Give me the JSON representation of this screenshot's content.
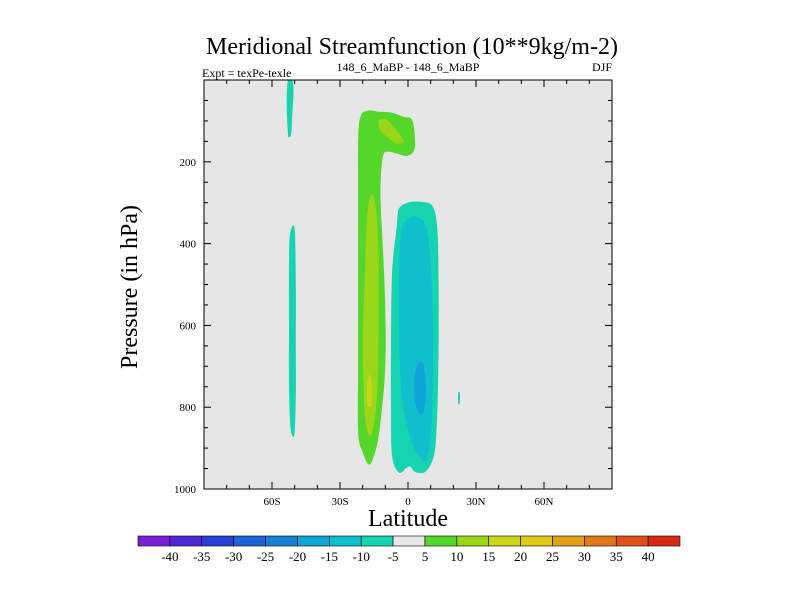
{
  "chart_data": {
    "type": "contour",
    "title": "Meridional Streamfunction (10**9kg/m-2)",
    "subtitle_left": "Expt = texPe-texle",
    "subtitle_center": "148_6_MaBP - 148_6_MaBP",
    "subtitle_right": "DJF",
    "xlabel": "Latitude",
    "ylabel": "Pressure (in hPa)",
    "xlim": [
      -90,
      90
    ],
    "ylim": [
      1000,
      0
    ],
    "x_ticks": [
      {
        "value": -60,
        "label": "60S"
      },
      {
        "value": -30,
        "label": "30S"
      },
      {
        "value": 0,
        "label": "0"
      },
      {
        "value": 30,
        "label": "30N"
      },
      {
        "value": 60,
        "label": "60N"
      }
    ],
    "y_ticks": [
      {
        "value": 200,
        "label": "200"
      },
      {
        "value": 400,
        "label": "400"
      },
      {
        "value": 600,
        "label": "600"
      },
      {
        "value": 800,
        "label": "800"
      },
      {
        "value": 1000,
        "label": "1000"
      }
    ],
    "background_color": "#e6e6e6",
    "colorbar": {
      "levels": [
        "-40",
        "-35",
        "-30",
        "-25",
        "-20",
        "-15",
        "-10",
        "-5",
        "5",
        "10",
        "15",
        "20",
        "25",
        "30",
        "35",
        "40"
      ],
      "colors": [
        "#7b1fd6",
        "#4d28d4",
        "#2a3fd6",
        "#1d62d6",
        "#1481d6",
        "#0fa3d6",
        "#0fc0cc",
        "#16d4b0",
        "#e6e6e6",
        "#55d62a",
        "#9ad61a",
        "#c8d61a",
        "#e0c81a",
        "#e0a01a",
        "#e0781a",
        "#e0501a",
        "#d62a14"
      ]
    },
    "regions": [
      {
        "name": "high-lat-south-upper",
        "color": "#16d4b0",
        "points": [
          [
            -53,
            0
          ],
          [
            -51,
            0
          ],
          [
            -50.5,
            30
          ],
          [
            -51,
            80
          ],
          [
            -51.5,
            130
          ],
          [
            -52.5,
            140
          ],
          [
            -53,
            130
          ],
          [
            -53.5,
            60
          ]
        ]
      },
      {
        "name": "high-lat-south-lower",
        "color": "#16d4b0",
        "points": [
          [
            -52,
            375
          ],
          [
            -50,
            365
          ],
          [
            -49.5,
            500
          ],
          [
            -49.5,
            650
          ],
          [
            -49.5,
            770
          ],
          [
            -50,
            860
          ],
          [
            -51,
            870
          ],
          [
            -52,
            840
          ],
          [
            -52.5,
            750
          ],
          [
            -52.5,
            600
          ],
          [
            -52.5,
            450
          ]
        ]
      },
      {
        "name": "southern-cell-10",
        "color": "#55d62a",
        "points": [
          [
            -21,
            90
          ],
          [
            -18,
            75
          ],
          [
            -12,
            78
          ],
          [
            -7,
            80
          ],
          [
            -2,
            90
          ],
          [
            2,
            100
          ],
          [
            3,
            165
          ],
          [
            0,
            185
          ],
          [
            -5,
            180
          ],
          [
            -9,
            175
          ],
          [
            -11,
            185
          ],
          [
            -12,
            240
          ],
          [
            -12,
            310
          ],
          [
            -11,
            420
          ],
          [
            -10,
            560
          ],
          [
            -10,
            700
          ],
          [
            -12,
            830
          ],
          [
            -14,
            900
          ],
          [
            -17,
            940
          ],
          [
            -20,
            910
          ],
          [
            -22,
            860
          ],
          [
            -22,
            700
          ],
          [
            -22,
            500
          ],
          [
            -22,
            300
          ],
          [
            -22,
            150
          ]
        ]
      },
      {
        "name": "southern-cell-15-upper",
        "color": "#9ad61a",
        "points": [
          [
            -13,
            100
          ],
          [
            -10,
            95
          ],
          [
            -7,
            110
          ],
          [
            -4,
            130
          ],
          [
            -2,
            150
          ],
          [
            -5,
            155
          ],
          [
            -9,
            140
          ],
          [
            -12,
            125
          ]
        ]
      },
      {
        "name": "southern-cell-15-lower",
        "color": "#9ad61a",
        "points": [
          [
            -16,
            280
          ],
          [
            -14,
            320
          ],
          [
            -13,
            450
          ],
          [
            -13,
            620
          ],
          [
            -13.5,
            760
          ],
          [
            -15,
            840
          ],
          [
            -17,
            870
          ],
          [
            -19,
            820
          ],
          [
            -20,
            650
          ],
          [
            -19,
            470
          ],
          [
            -18,
            330
          ]
        ]
      },
      {
        "name": "southern-cell-20",
        "color": "#c8d61a",
        "points": [
          [
            -17,
            720
          ],
          [
            -16,
            745
          ],
          [
            -16,
            790
          ],
          [
            -17,
            800
          ],
          [
            -18,
            790
          ],
          [
            -18,
            740
          ]
        ]
      },
      {
        "name": "northern-cell-minus5",
        "color": "#16d4b0",
        "points": [
          [
            -4,
            315
          ],
          [
            0,
            300
          ],
          [
            6,
            298
          ],
          [
            11,
            310
          ],
          [
            13,
            370
          ],
          [
            13.5,
            500
          ],
          [
            13.5,
            660
          ],
          [
            13,
            800
          ],
          [
            12,
            900
          ],
          [
            10,
            940
          ],
          [
            7,
            960
          ],
          [
            3,
            958
          ],
          [
            1,
            945
          ],
          [
            -1,
            950
          ],
          [
            -4,
            960
          ],
          [
            -7,
            920
          ],
          [
            -7.5,
            800
          ],
          [
            -7.5,
            650
          ],
          [
            -7,
            470
          ],
          [
            -5,
            360
          ]
        ]
      },
      {
        "name": "northern-cell-minus10",
        "color": "#0fc0cc",
        "points": [
          [
            -3,
            370
          ],
          [
            0,
            340
          ],
          [
            4,
            335
          ],
          [
            8,
            360
          ],
          [
            10,
            450
          ],
          [
            11,
            600
          ],
          [
            11,
            760
          ],
          [
            10,
            870
          ],
          [
            8,
            930
          ],
          [
            5,
            920
          ],
          [
            2,
            890
          ],
          [
            -1,
            830
          ],
          [
            -3,
            760
          ],
          [
            -4,
            620
          ],
          [
            -4,
            480
          ]
        ]
      },
      {
        "name": "northern-cell-minus15",
        "color": "#0fa3d6",
        "points": [
          [
            5,
            690
          ],
          [
            7,
            700
          ],
          [
            8,
            760
          ],
          [
            7,
            810
          ],
          [
            5,
            815
          ],
          [
            3,
            780
          ],
          [
            3,
            720
          ]
        ]
      },
      {
        "name": "small-spot",
        "color": "#0fc0cc",
        "points": [
          [
            22.2,
            765
          ],
          [
            22.8,
            765
          ],
          [
            22.8,
            790
          ],
          [
            22.2,
            790
          ]
        ]
      }
    ]
  }
}
